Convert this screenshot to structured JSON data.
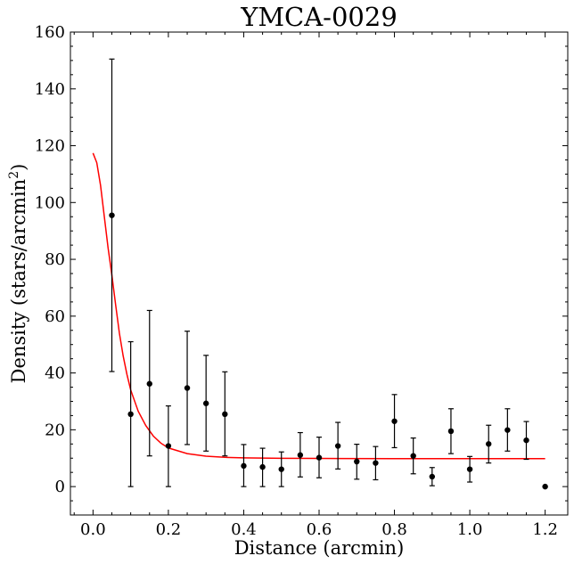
{
  "chart_data": {
    "type": "scatter",
    "title": "YMCA-0029",
    "xlabel": "Distance (arcmin)",
    "ylabel_text": "Density (stars/arcmin",
    "ylabel_sup": "2",
    "ylabel_close": ")",
    "xlim": [
      -0.06,
      1.26
    ],
    "ylim": [
      -10,
      160
    ],
    "x_ticks": [
      0.0,
      0.2,
      0.4,
      0.6,
      0.8,
      1.0,
      1.2
    ],
    "x_tick_labels": [
      "0.0",
      "0.2",
      "0.4",
      "0.6",
      "0.8",
      "1.0",
      "1.2"
    ],
    "y_ticks": [
      0,
      20,
      40,
      60,
      80,
      100,
      120,
      140,
      160
    ],
    "y_tick_labels": [
      "0",
      "20",
      "40",
      "60",
      "80",
      "100",
      "120",
      "140",
      "160"
    ],
    "grid": false,
    "points": [
      {
        "x": 0.05,
        "y": 95.5,
        "lo": 40.5,
        "hi": 150.5
      },
      {
        "x": 0.1,
        "y": 25.5,
        "lo": 0.0,
        "hi": 51.0
      },
      {
        "x": 0.15,
        "y": 36.2,
        "lo": 10.8,
        "hi": 62.0
      },
      {
        "x": 0.2,
        "y": 14.3,
        "lo": 0.0,
        "hi": 28.4
      },
      {
        "x": 0.25,
        "y": 34.7,
        "lo": 14.8,
        "hi": 54.7
      },
      {
        "x": 0.3,
        "y": 29.3,
        "lo": 12.5,
        "hi": 46.2
      },
      {
        "x": 0.35,
        "y": 25.5,
        "lo": 10.8,
        "hi": 40.4
      },
      {
        "x": 0.4,
        "y": 7.3,
        "lo": 0.0,
        "hi": 14.8
      },
      {
        "x": 0.45,
        "y": 6.9,
        "lo": 0.0,
        "hi": 13.5
      },
      {
        "x": 0.5,
        "y": 6.1,
        "lo": 0.0,
        "hi": 12.2
      },
      {
        "x": 0.55,
        "y": 11.1,
        "lo": 3.4,
        "hi": 19.0
      },
      {
        "x": 0.6,
        "y": 10.2,
        "lo": 3.1,
        "hi": 17.4
      },
      {
        "x": 0.65,
        "y": 14.3,
        "lo": 6.2,
        "hi": 22.6
      },
      {
        "x": 0.7,
        "y": 8.8,
        "lo": 2.6,
        "hi": 14.9
      },
      {
        "x": 0.75,
        "y": 8.3,
        "lo": 2.4,
        "hi": 14.1
      },
      {
        "x": 0.8,
        "y": 23.0,
        "lo": 13.7,
        "hi": 32.4
      },
      {
        "x": 0.85,
        "y": 10.8,
        "lo": 4.5,
        "hi": 17.1
      },
      {
        "x": 0.9,
        "y": 3.5,
        "lo": 0.3,
        "hi": 6.7
      },
      {
        "x": 0.95,
        "y": 19.5,
        "lo": 11.6,
        "hi": 27.4
      },
      {
        "x": 1.0,
        "y": 6.1,
        "lo": 1.6,
        "hi": 10.6
      },
      {
        "x": 1.05,
        "y": 15.0,
        "lo": 8.3,
        "hi": 21.6
      },
      {
        "x": 1.1,
        "y": 19.9,
        "lo": 12.5,
        "hi": 27.4
      },
      {
        "x": 1.15,
        "y": 16.3,
        "lo": 9.6,
        "hi": 22.9
      },
      {
        "x": 1.2,
        "y": 0.0,
        "lo": 0.0,
        "hi": 0.0
      }
    ],
    "fit_curve": {
      "type": "line",
      "color": "#ff0000",
      "x": [
        0.0,
        0.01,
        0.02,
        0.03,
        0.04,
        0.05,
        0.06,
        0.07,
        0.08,
        0.09,
        0.1,
        0.12,
        0.14,
        0.16,
        0.18,
        0.2,
        0.25,
        0.3,
        0.35,
        0.4,
        0.5,
        0.6,
        0.8,
        1.0,
        1.2
      ],
      "y": [
        117.4,
        114.0,
        106.0,
        95.0,
        84.0,
        74.5,
        64.0,
        54.0,
        46.0,
        39.5,
        34.0,
        26.5,
        21.5,
        17.8,
        15.3,
        13.6,
        11.6,
        10.7,
        10.3,
        10.1,
        9.95,
        9.9,
        9.85,
        9.85,
        9.85
      ]
    },
    "marker_color": "#000000"
  }
}
